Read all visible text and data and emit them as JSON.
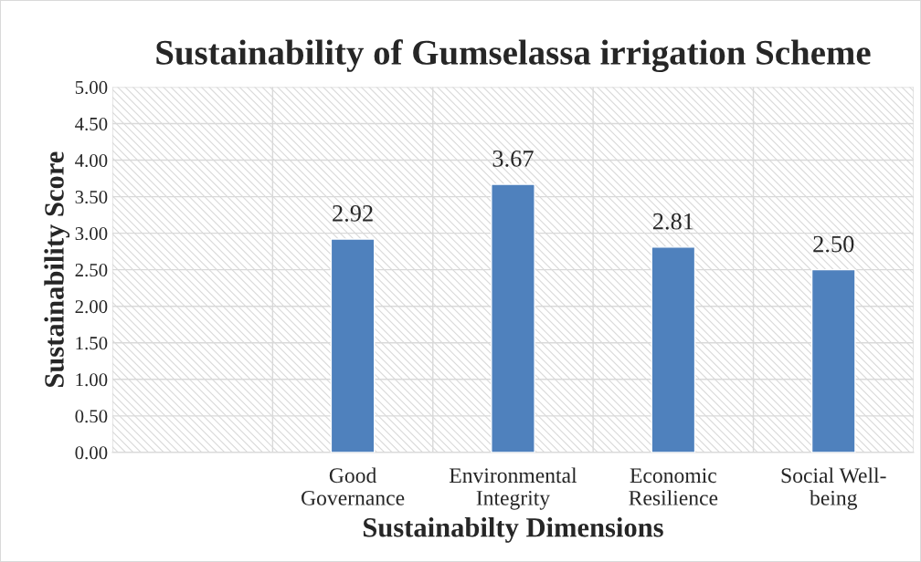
{
  "chart_data": {
    "type": "bar",
    "title": "Sustainability of Gumselassa irrigation Scheme",
    "xlabel": "Sustainabilty Dimensions",
    "ylabel": "Sustainability Score",
    "categories": [
      null,
      "Good Governance",
      "Environmental Integrity",
      "Economic Resilience",
      "Social Well-being"
    ],
    "values": [
      null,
      2.92,
      3.67,
      2.81,
      2.5
    ],
    "value_labels": [
      null,
      "2.92",
      "3.67",
      "2.81",
      "2.50"
    ],
    "color": "#4f81bd",
    "ylim": [
      0,
      5
    ],
    "yticks": [
      {
        "value": 0,
        "label": "0.00"
      },
      {
        "value": 0.5,
        "label": "0.50"
      },
      {
        "value": 1,
        "label": "1.00"
      },
      {
        "value": 1.5,
        "label": "1.50"
      },
      {
        "value": 2,
        "label": "2.00"
      },
      {
        "value": 2.5,
        "label": "2.50"
      },
      {
        "value": 3,
        "label": "3.00"
      },
      {
        "value": 3.5,
        "label": "3.50"
      },
      {
        "value": 4,
        "label": "4.00"
      },
      {
        "value": 4.5,
        "label": "4.50"
      },
      {
        "value": 5,
        "label": "5.00"
      }
    ],
    "grid": true
  }
}
